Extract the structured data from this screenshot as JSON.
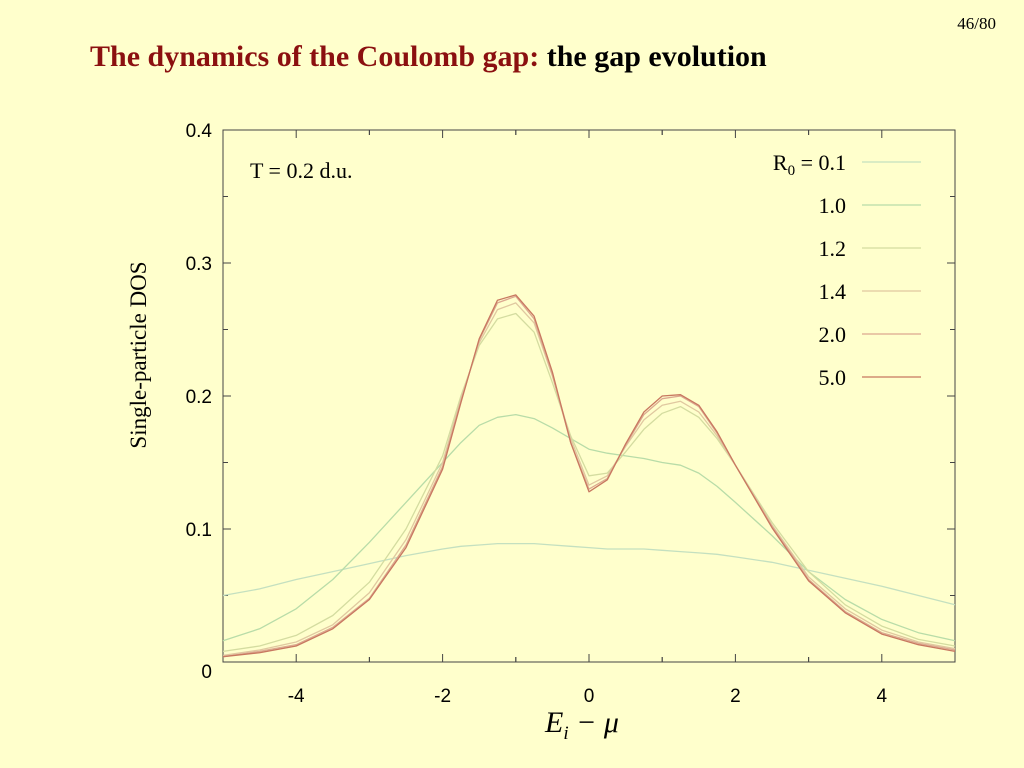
{
  "slide": {
    "page_number": "46/80",
    "title_colored": "The dynamics of the Coulomb gap:",
    "title_rest": "the gap evolution"
  },
  "chart_data": {
    "type": "line",
    "xlim": [
      -5,
      5
    ],
    "ylim": [
      0,
      0.4
    ],
    "x_ticks": [
      -4,
      -2,
      0,
      2,
      4
    ],
    "x_tick_labels": [
      "-4",
      "-2",
      "0",
      "2",
      "4"
    ],
    "y_ticks": [
      0,
      0.1,
      0.2,
      0.3,
      0.4
    ],
    "y_tick_labels": [
      "0",
      "0.1",
      "0.2",
      "0.3",
      "0.4"
    ],
    "xlabel": "E",
    "xlabel_subscript": "i",
    "xlabel_rest": " − μ",
    "ylabel": "Single-particle DOS",
    "annotation": "T = 0.2 d.u.",
    "legend_position": "top-right",
    "legend_prefix": "R",
    "legend_prefix_subscript": "0",
    "legend_equals": " = ",
    "grid": false,
    "x": [
      -5,
      -4.5,
      -4,
      -3.5,
      -3,
      -2.5,
      -2,
      -1.75,
      -1.5,
      -1.25,
      -1,
      -0.75,
      -0.5,
      -0.25,
      0,
      0.25,
      0.5,
      0.75,
      1,
      1.25,
      1.5,
      1.75,
      2,
      2.5,
      3,
      3.5,
      4,
      4.5,
      5
    ],
    "series": [
      {
        "name": "0.1",
        "color": "#c4e0c0",
        "values": [
          0.05,
          0.055,
          0.062,
          0.068,
          0.074,
          0.08,
          0.085,
          0.087,
          0.088,
          0.089,
          0.089,
          0.089,
          0.088,
          0.087,
          0.086,
          0.085,
          0.085,
          0.085,
          0.084,
          0.083,
          0.082,
          0.081,
          0.079,
          0.075,
          0.069,
          0.063,
          0.057,
          0.05,
          0.043
        ]
      },
      {
        "name": "1.0",
        "color": "#b8dca8",
        "values": [
          0.016,
          0.025,
          0.04,
          0.062,
          0.09,
          0.12,
          0.15,
          0.165,
          0.178,
          0.184,
          0.186,
          0.183,
          0.176,
          0.168,
          0.16,
          0.157,
          0.155,
          0.153,
          0.15,
          0.148,
          0.142,
          0.132,
          0.12,
          0.095,
          0.068,
          0.047,
          0.032,
          0.022,
          0.016
        ]
      },
      {
        "name": "1.2",
        "color": "#d4dca0",
        "values": [
          0.008,
          0.012,
          0.02,
          0.035,
          0.06,
          0.1,
          0.155,
          0.2,
          0.238,
          0.258,
          0.262,
          0.248,
          0.21,
          0.17,
          0.14,
          0.142,
          0.158,
          0.175,
          0.187,
          0.192,
          0.184,
          0.168,
          0.148,
          0.105,
          0.068,
          0.043,
          0.027,
          0.017,
          0.012
        ]
      },
      {
        "name": "1.4",
        "color": "#e0c8a0",
        "values": [
          0.005,
          0.009,
          0.015,
          0.028,
          0.052,
          0.092,
          0.15,
          0.198,
          0.24,
          0.265,
          0.27,
          0.255,
          0.215,
          0.168,
          0.133,
          0.14,
          0.162,
          0.182,
          0.193,
          0.196,
          0.188,
          0.17,
          0.148,
          0.103,
          0.064,
          0.04,
          0.024,
          0.015,
          0.01
        ]
      },
      {
        "name": "2.0",
        "color": "#dca890",
        "values": [
          0.004,
          0.008,
          0.013,
          0.026,
          0.048,
          0.088,
          0.147,
          0.196,
          0.242,
          0.27,
          0.275,
          0.258,
          0.216,
          0.165,
          0.13,
          0.138,
          0.163,
          0.186,
          0.198,
          0.2,
          0.192,
          0.172,
          0.148,
          0.102,
          0.062,
          0.038,
          0.022,
          0.014,
          0.009
        ]
      },
      {
        "name": "5.0",
        "color": "#c87860",
        "values": [
          0.004,
          0.007,
          0.012,
          0.025,
          0.047,
          0.086,
          0.145,
          0.195,
          0.243,
          0.272,
          0.276,
          0.26,
          0.218,
          0.165,
          0.128,
          0.137,
          0.164,
          0.188,
          0.2,
          0.201,
          0.193,
          0.173,
          0.148,
          0.101,
          0.061,
          0.037,
          0.021,
          0.013,
          0.008
        ]
      }
    ]
  }
}
